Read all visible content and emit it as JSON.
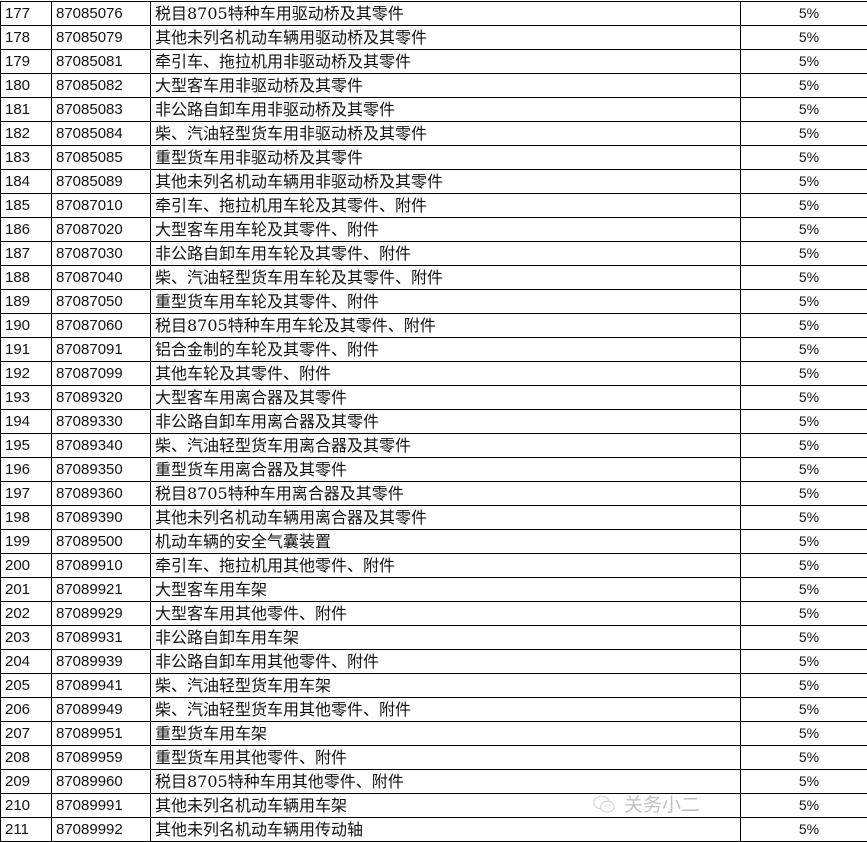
{
  "table": {
    "rows": [
      [
        "177",
        "87085076",
        "税目8705特种车用驱动桥及其零件",
        "5%"
      ],
      [
        "178",
        "87085079",
        "其他未列名机动车辆用驱动桥及其零件",
        "5%"
      ],
      [
        "179",
        "87085081",
        "牵引车、拖拉机用非驱动桥及其零件",
        "5%"
      ],
      [
        "180",
        "87085082",
        "大型客车用非驱动桥及其零件",
        "5%"
      ],
      [
        "181",
        "87085083",
        "非公路自卸车用非驱动桥及其零件",
        "5%"
      ],
      [
        "182",
        "87085084",
        "柴、汽油轻型货车用非驱动桥及其零件",
        "5%"
      ],
      [
        "183",
        "87085085",
        "重型货车用非驱动桥及其零件",
        "5%"
      ],
      [
        "184",
        "87085089",
        "其他未列名机动车辆用非驱动桥及其零件",
        "5%"
      ],
      [
        "185",
        "87087010",
        "牵引车、拖拉机用车轮及其零件、附件",
        "5%"
      ],
      [
        "186",
        "87087020",
        "大型客车用车轮及其零件、附件",
        "5%"
      ],
      [
        "187",
        "87087030",
        "非公路自卸车用车轮及其零件、附件",
        "5%"
      ],
      [
        "188",
        "87087040",
        "柴、汽油轻型货车用车轮及其零件、附件",
        "5%"
      ],
      [
        "189",
        "87087050",
        "重型货车用车轮及其零件、附件",
        "5%"
      ],
      [
        "190",
        "87087060",
        "税目8705特种车用车轮及其零件、附件",
        "5%"
      ],
      [
        "191",
        "87087091",
        "铝合金制的车轮及其零件、附件",
        "5%"
      ],
      [
        "192",
        "87087099",
        "其他车轮及其零件、附件",
        "5%"
      ],
      [
        "193",
        "87089320",
        "大型客车用离合器及其零件",
        "5%"
      ],
      [
        "194",
        "87089330",
        "非公路自卸车用离合器及其零件",
        "5%"
      ],
      [
        "195",
        "87089340",
        "柴、汽油轻型货车用离合器及其零件",
        "5%"
      ],
      [
        "196",
        "87089350",
        "重型货车用离合器及其零件",
        "5%"
      ],
      [
        "197",
        "87089360",
        "税目8705特种车用离合器及其零件",
        "5%"
      ],
      [
        "198",
        "87089390",
        "其他未列名机动车辆用离合器及其零件",
        "5%"
      ],
      [
        "199",
        "87089500",
        "机动车辆的安全气囊装置",
        "5%"
      ],
      [
        "200",
        "87089910",
        "牵引车、拖拉机用其他零件、附件",
        "5%"
      ],
      [
        "201",
        "87089921",
        "大型客车用车架",
        "5%"
      ],
      [
        "202",
        "87089929",
        "大型客车用其他零件、附件",
        "5%"
      ],
      [
        "203",
        "87089931",
        "非公路自卸车用车架",
        "5%"
      ],
      [
        "204",
        "87089939",
        "非公路自卸车用其他零件、附件",
        "5%"
      ],
      [
        "205",
        "87089941",
        "柴、汽油轻型货车用车架",
        "5%"
      ],
      [
        "206",
        "87089949",
        "柴、汽油轻型货车用其他零件、附件",
        "5%"
      ],
      [
        "207",
        "87089951",
        "重型货车用车架",
        "5%"
      ],
      [
        "208",
        "87089959",
        "重型货车用其他零件、附件",
        "5%"
      ],
      [
        "209",
        "87089960",
        "税目8705特种车用其他零件、附件",
        "5%"
      ],
      [
        "210",
        "87089991",
        "其他未列名机动车辆用车架",
        "5%"
      ],
      [
        "211",
        "87089992",
        "其他未列名机动车辆用传动轴",
        "5%"
      ]
    ]
  },
  "watermark": {
    "text": "关务小二",
    "icon": "wechat-icon"
  }
}
